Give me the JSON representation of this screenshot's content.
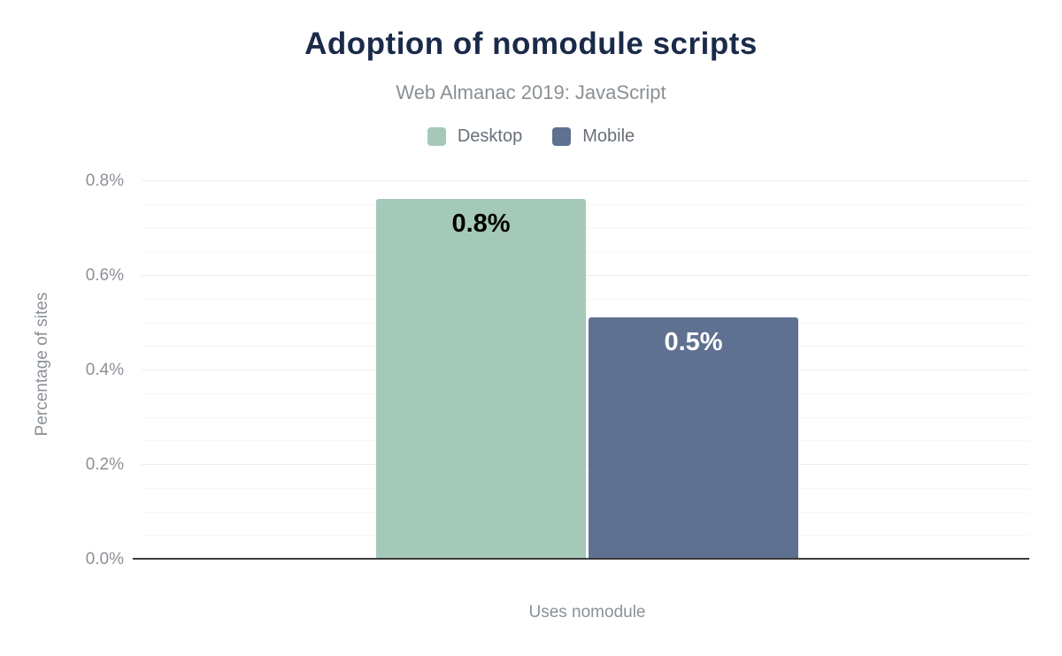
{
  "header": {
    "title": "Adoption of nomodule scripts",
    "subtitle": "Web Almanac 2019: JavaScript"
  },
  "chart_data": {
    "type": "bar",
    "title": "Adoption of nomodule scripts",
    "subtitle": "Web Almanac 2019: JavaScript",
    "categories": [
      "Uses nomodule"
    ],
    "series": [
      {
        "name": "Desktop",
        "value": 0.76,
        "display_label": "0.8%",
        "color": "#a5c9b8",
        "label_color": "#000000"
      },
      {
        "name": "Mobile",
        "value": 0.51,
        "display_label": "0.5%",
        "color": "#5f7190",
        "label_color": "#ffffff"
      }
    ],
    "xlabel": "Uses nomodule",
    "ylabel": "Percentage of sites",
    "ylim": [
      0,
      0.8
    ],
    "yticks": [
      {
        "value": 0.0,
        "label": "0.0%"
      },
      {
        "value": 0.2,
        "label": "0.2%"
      },
      {
        "value": 0.4,
        "label": "0.4%"
      },
      {
        "value": 0.6,
        "label": "0.6%"
      },
      {
        "value": 0.8,
        "label": "0.8%"
      }
    ],
    "minor_grid_step": 0.05,
    "grid": true,
    "legend_position": "top"
  },
  "colors": {
    "title": "#1b2a49",
    "subtitle": "#8a9094",
    "axis_text": "#8b9197",
    "axis_line": "#3b3b3b",
    "grid_major": "#ededed",
    "grid_minor": "#f6f6f6",
    "background": "#ffffff"
  }
}
